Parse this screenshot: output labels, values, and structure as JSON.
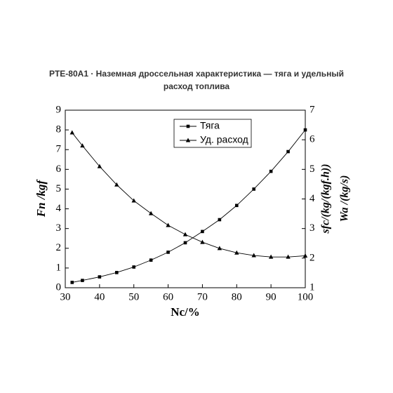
{
  "chart_data": {
    "type": "line",
    "title": "PTE-80A1 · Наземная дроссельная характеристика — тяга и удельный расход топлива",
    "x_label": "Nc/%",
    "y_label": "Fn /kgf",
    "y2_labels": [
      "sfc/(kg/(kgf.h))",
      "Wa /(kg/s)"
    ],
    "x": [
      32,
      35,
      40,
      45,
      50,
      55,
      60,
      65,
      70,
      75,
      80,
      85,
      90,
      95,
      100
    ],
    "series": [
      {
        "name": "Тяга",
        "color": "#000000",
        "marker": "square",
        "values": [
          0.27,
          0.37,
          0.55,
          0.77,
          1.05,
          1.4,
          1.8,
          2.28,
          2.85,
          3.45,
          4.17,
          5.0,
          5.9,
          6.9,
          8.0
        ]
      },
      {
        "name": "Уд. расход",
        "color": "#000000",
        "marker": "triangle",
        "axis": "y2",
        "values": [
          6.24,
          5.8,
          5.1,
          4.48,
          3.94,
          3.51,
          3.11,
          2.8,
          2.54,
          2.33,
          2.18,
          2.09,
          2.04,
          2.04,
          2.08
        ]
      }
    ],
    "xlim": [
      30,
      100
    ],
    "xticks": [
      30,
      40,
      50,
      60,
      70,
      80,
      90,
      100
    ],
    "ylim": [
      0,
      9
    ],
    "yticks": [
      0,
      1,
      2,
      3,
      4,
      5,
      6,
      7,
      8,
      9
    ],
    "y2lim": [
      1,
      7
    ],
    "y2ticks": [
      1,
      2,
      3,
      4,
      5,
      6,
      7
    ],
    "legend": "top-center"
  }
}
